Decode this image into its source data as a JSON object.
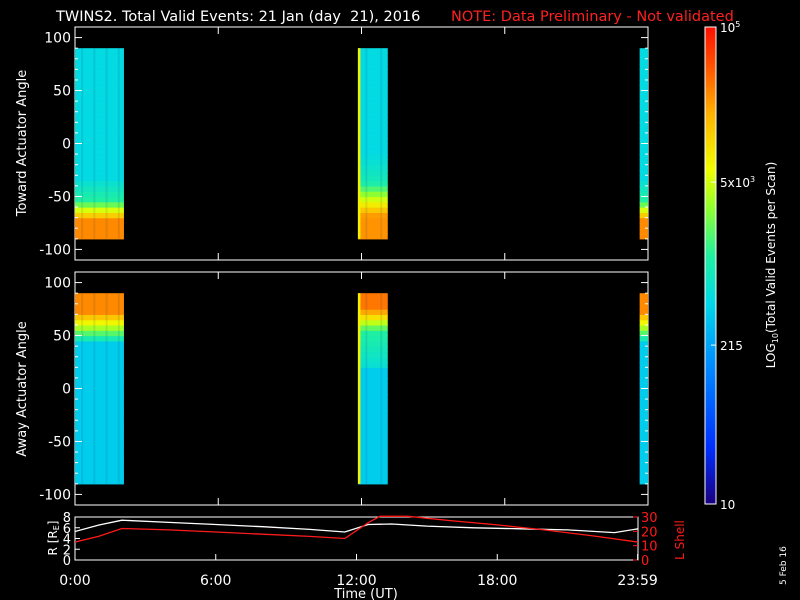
{
  "header": {
    "title": "TWINS2. Total Valid Events: 21 Jan (day  21), 2016",
    "note": "NOTE: Data Preliminary - Not validated",
    "note_color": "#ff2020"
  },
  "footer": {
    "stamp": "5 Feb 16",
    "xlabel": "Time (UT)"
  },
  "colorbar": {
    "label": "LOG10(Total Valid Events per Scan)",
    "label_main": "LOG",
    "label_sub": "10",
    "label_rest": "(Total Valid Events per Scan)",
    "ticks": [
      {
        "value": 100000,
        "base": "10",
        "exp": "5",
        "text": ""
      },
      {
        "value": 5000,
        "base": "5x10",
        "exp": "3",
        "text": ""
      },
      {
        "value": 215,
        "base": "",
        "exp": "",
        "text": "215"
      },
      {
        "value": 10,
        "base": "",
        "exp": "",
        "text": "10"
      }
    ],
    "range": [
      10,
      100000
    ],
    "scale": "log"
  },
  "chart_data": [
    {
      "type": "heatmap",
      "ylabel": "Toward Actuator Angle",
      "ylim": [
        -110,
        110
      ],
      "yticks": [
        100,
        50,
        0,
        -50,
        -100
      ],
      "x_range_hours": [
        0,
        24
      ],
      "data_blocks": [
        {
          "start_hour": 0.0,
          "end_hour": 2.05,
          "profile": "toward_a"
        },
        {
          "start_hour": 11.85,
          "end_hour": 13.1,
          "profile": "toward_b"
        },
        {
          "start_hour": 23.65,
          "end_hour": 24.0,
          "profile": "toward_a"
        }
      ],
      "angle_range": [
        -90,
        90
      ]
    },
    {
      "type": "heatmap",
      "ylabel": "Away Actuator Angle",
      "ylim": [
        -110,
        110
      ],
      "yticks": [
        100,
        50,
        0,
        -50,
        -100
      ],
      "x_range_hours": [
        0,
        24
      ],
      "data_blocks": [
        {
          "start_hour": 0.0,
          "end_hour": 2.05,
          "profile": "away_a"
        },
        {
          "start_hour": 11.85,
          "end_hour": 13.1,
          "profile": "away_b"
        },
        {
          "start_hour": 23.65,
          "end_hour": 24.0,
          "profile": "away_a"
        }
      ],
      "angle_range": [
        -90,
        90
      ]
    },
    {
      "type": "line",
      "ylabel": "R [RE]",
      "ylabel_main": "R [R",
      "ylabel_sub": "E",
      "ylabel_end": "]",
      "ylim": [
        0,
        8
      ],
      "yticks": [
        0,
        2,
        4,
        6,
        8
      ],
      "y2label": "L Shell",
      "y2lim": [
        0,
        30
      ],
      "y2ticks": [
        0,
        10,
        20,
        30
      ],
      "xticks": [
        {
          "hour": 0,
          "label": "0:00"
        },
        {
          "hour": 6,
          "label": "6:00"
        },
        {
          "hour": 12,
          "label": "12:00"
        },
        {
          "hour": 18,
          "label": "18:00"
        },
        {
          "hour": 23.983,
          "label": "23:59"
        }
      ],
      "series": [
        {
          "axis": "left",
          "color": "#ffffff",
          "x": [
            0,
            1,
            2,
            4,
            6,
            8,
            10,
            11.5,
            12.5,
            13.5,
            15,
            17,
            19,
            21,
            23,
            24
          ],
          "values": [
            5.3,
            6.5,
            7.4,
            7.0,
            6.6,
            6.2,
            5.7,
            5.2,
            6.6,
            6.7,
            6.3,
            6.0,
            5.8,
            5.6,
            5.1,
            5.8
          ]
        },
        {
          "axis": "right",
          "color": "#ff1a1a",
          "x": [
            0,
            1,
            2,
            4,
            6,
            8,
            10,
            11.5,
            12.5,
            13.0,
            14.2,
            16,
            18,
            20,
            22,
            24
          ],
          "values": [
            12.5,
            16.5,
            22.0,
            21.0,
            19.5,
            18.0,
            16.5,
            15.0,
            26.0,
            30.5,
            30.5,
            27.5,
            24.5,
            21.0,
            17.0,
            12.5
          ]
        }
      ]
    }
  ]
}
